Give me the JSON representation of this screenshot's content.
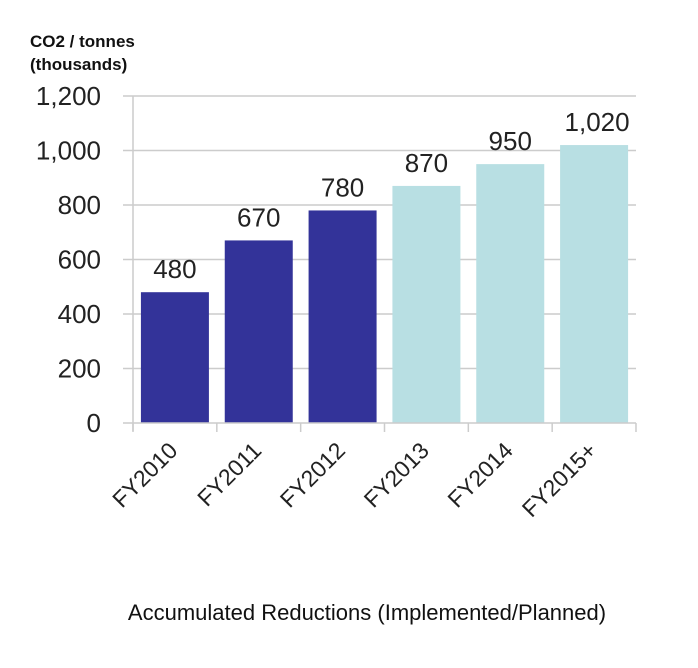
{
  "chart_data": {
    "type": "bar",
    "title": "",
    "ylabel_lines": [
      "CO2 / tonnes",
      "(thousands)"
    ],
    "xlabel": "Accumulated Reductions (Implemented/Planned)",
    "categories": [
      "FY2010",
      "FY2011",
      "FY2012",
      "FY2013",
      "FY2014",
      "FY2015+"
    ],
    "values": [
      480,
      670,
      780,
      870,
      950,
      1020
    ],
    "value_labels": [
      "480",
      "670",
      "780",
      "870",
      "950",
      "1,020"
    ],
    "status": [
      "Implemented",
      "Implemented",
      "Implemented",
      "Planned",
      "Planned",
      "Planned"
    ],
    "ylim": [
      0,
      1200
    ],
    "yticks": [
      0,
      200,
      400,
      600,
      800,
      1000,
      1200
    ],
    "ytick_labels": [
      "0",
      "200",
      "400",
      "600",
      "800",
      "1,000",
      "1,200"
    ],
    "grid": true,
    "legend": "none",
    "colors": {
      "Implemented": "#333399",
      "Planned": "#b8dfe3",
      "grid": "#cccccc"
    }
  }
}
